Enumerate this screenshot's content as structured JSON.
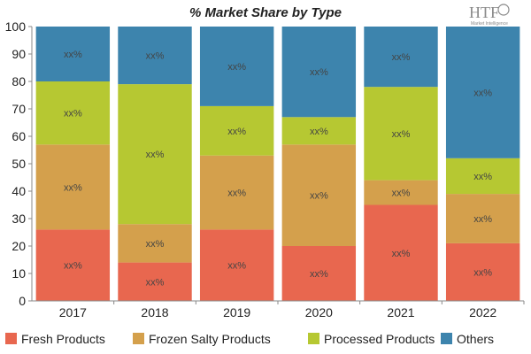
{
  "brand": {
    "logo_text": "HTF",
    "logo_subtext": "Market Intelligence"
  },
  "chart_data": {
    "type": "bar",
    "stacked": true,
    "title": "% Market Share by Type",
    "xlabel": "",
    "ylabel": "",
    "ylim": [
      0,
      100
    ],
    "yticks": [
      0,
      10,
      20,
      30,
      40,
      50,
      60,
      70,
      80,
      90,
      100
    ],
    "categories": [
      "2017",
      "2018",
      "2019",
      "2020",
      "2021",
      "2022"
    ],
    "series": [
      {
        "name": "Fresh Products",
        "color": "#e8674f",
        "values": [
          26,
          14,
          26,
          20,
          35,
          21
        ],
        "labels": [
          "xx%",
          "xx%",
          "xx%",
          "xx%",
          "xx%",
          "xx%"
        ]
      },
      {
        "name": "Frozen Salty Products",
        "color": "#d4a04c",
        "values": [
          31,
          14,
          27,
          37,
          9,
          18
        ],
        "labels": [
          "xx%",
          "xx%",
          "xx%",
          "xx%",
          "xx%",
          "xx%"
        ]
      },
      {
        "name": "Processed Products",
        "color": "#b6c832",
        "values": [
          23,
          51,
          18,
          10,
          34,
          13
        ],
        "labels": [
          "xx%",
          "xx%",
          "xx%",
          "xx%",
          "xx%",
          "xx%"
        ]
      },
      {
        "name": "Others",
        "color": "#3d84ad",
        "values": [
          20,
          21,
          29,
          33,
          22,
          48
        ],
        "labels": [
          "xx%",
          "xx%",
          "xx%",
          "xx%",
          "xx%",
          "xx%"
        ]
      }
    ],
    "grid": false,
    "legend_position": "bottom"
  }
}
